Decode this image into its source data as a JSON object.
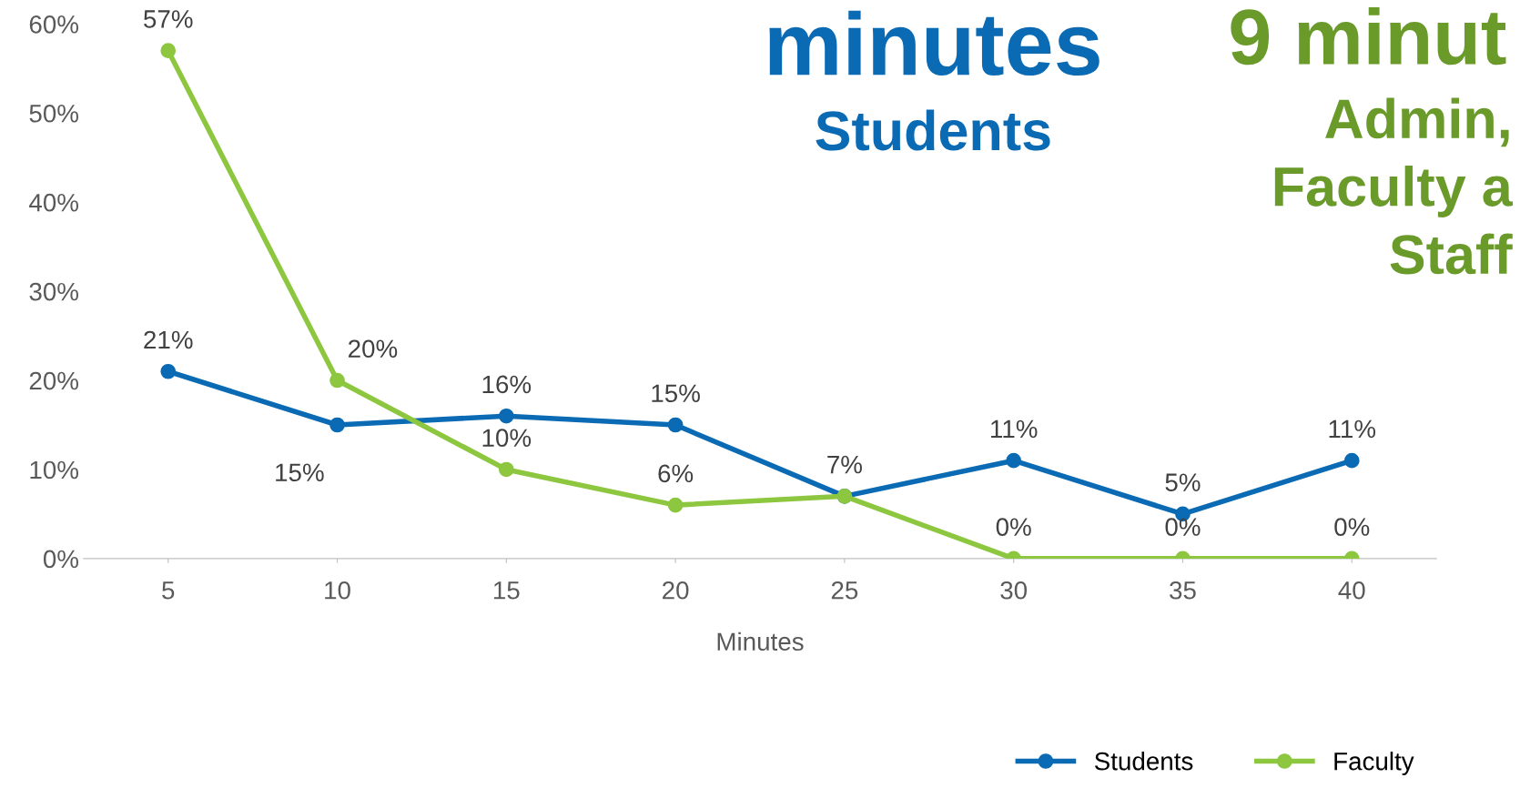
{
  "chart_data": {
    "type": "line",
    "xlabel": "Minutes",
    "categories": [
      "5",
      "10",
      "15",
      "20",
      "25",
      "30",
      "35",
      "40"
    ],
    "series": [
      {
        "name": "Students",
        "color": "#0a6ab4",
        "values": [
          21,
          15,
          16,
          15,
          7,
          11,
          5,
          11
        ],
        "value_labels": [
          "21%",
          "15%",
          "16%",
          "15%",
          null,
          "11%",
          "5%",
          "11%"
        ]
      },
      {
        "name": "Faculty",
        "color": "#8dc63f",
        "values": [
          57,
          20,
          10,
          6,
          7,
          0,
          0,
          0
        ],
        "value_labels": [
          "57%",
          "20%",
          "10%",
          "6%",
          "7%",
          "0%",
          "0%",
          "0%"
        ]
      }
    ],
    "ylim": [
      0,
      60
    ],
    "yticks": [
      {
        "value": 0,
        "label": "0%"
      },
      {
        "value": 10,
        "label": "10%"
      },
      {
        "value": 20,
        "label": "20%"
      },
      {
        "value": 30,
        "label": "30%"
      },
      {
        "value": 40,
        "label": "40%"
      },
      {
        "value": 50,
        "label": "50%"
      },
      {
        "value": 60,
        "label": "60%"
      }
    ],
    "grid": false,
    "legend": "bottom",
    "marker": "circle",
    "line_style": "solid",
    "annotations": [
      "minutes",
      "Students",
      "9 minut",
      "Admin,",
      "Faculty a",
      "Staff"
    ]
  }
}
